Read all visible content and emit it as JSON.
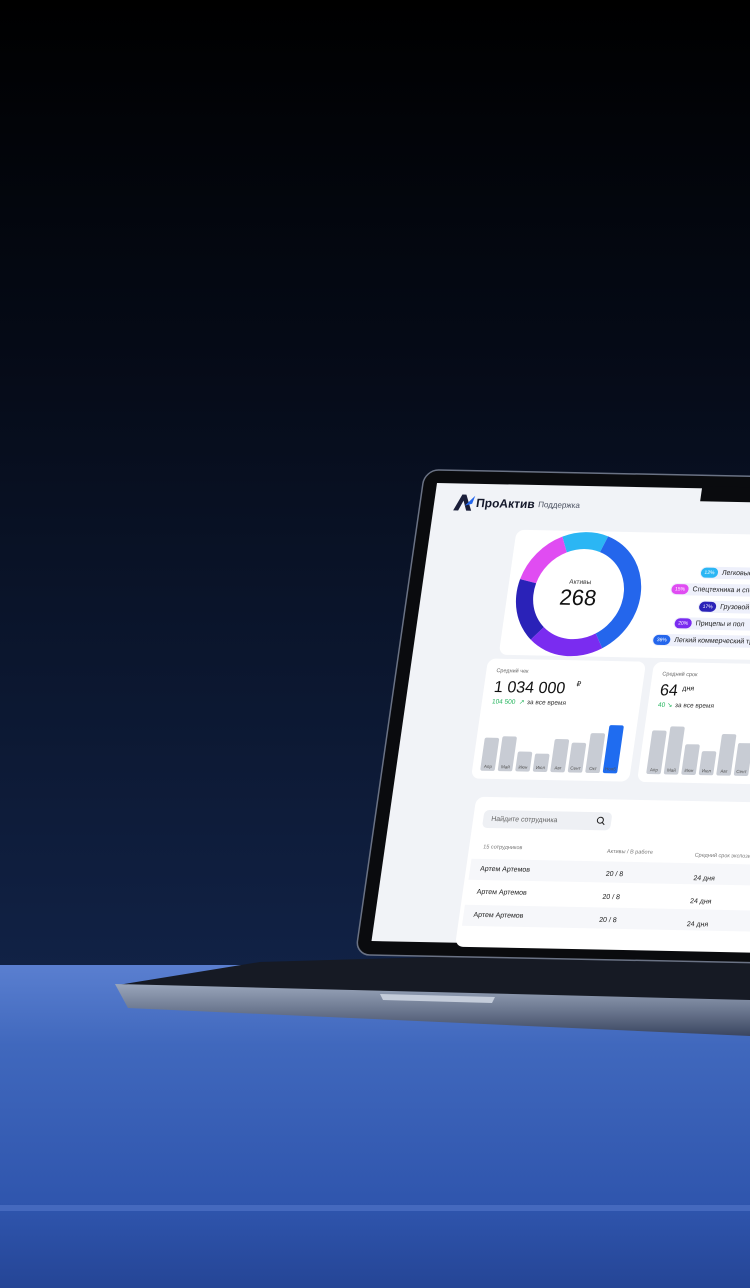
{
  "header": {
    "logo": "ПроАктив",
    "nav": "Поддержка"
  },
  "assets": {
    "label": "Активы",
    "total": 268,
    "names": [
      "Легковые",
      "Спецтехника и спе",
      "Грузовой",
      "Прицепы и пол",
      "Легкий коммерческий тр"
    ],
    "values": [
      12,
      15,
      17,
      20,
      36
    ],
    "value_labels": [
      "12%",
      "15%",
      "17%",
      "20%",
      "36%"
    ],
    "colors": [
      "#2bb6f4",
      "#e04cf2",
      "#2a22b8",
      "#7a2cf0",
      "#2466ec"
    ]
  },
  "avg_check": {
    "label": "Средний чек",
    "value": "1 034 000",
    "currency": "₽",
    "change": "104 500",
    "change_icon": "↗",
    "change_note": "за все время",
    "months": [
      "Апр",
      "Май",
      "Июн",
      "Июл",
      "Авг",
      "Сент",
      "Окт",
      "Нояб"
    ],
    "values": [
      40,
      42,
      24,
      22,
      40,
      36,
      48,
      58
    ],
    "colors": [
      "#c8ccd4",
      "#c8ccd4",
      "#c8ccd4",
      "#c8ccd4",
      "#c8ccd4",
      "#c8ccd4",
      "#c8ccd4",
      "#1f6cf0"
    ]
  },
  "avg_term": {
    "label": "Средний срок",
    "value": "64",
    "unit": "дня",
    "change": "40",
    "change_icon": "↘",
    "change_note": "за все время",
    "months": [
      "Апр",
      "Май",
      "Июн",
      "Июл",
      "Авг",
      "Сент"
    ],
    "values": [
      40,
      44,
      28,
      22,
      38,
      30
    ],
    "colors": [
      "#c8ccd4",
      "#c8ccd4",
      "#c8ccd4",
      "#c8ccd4",
      "#c8ccd4",
      "#c8ccd4"
    ]
  },
  "table": {
    "search_placeholder": "Найдите сотрудника",
    "headers": [
      "15 сотрудников",
      "Активы / В работе",
      "Средний срок экспозиции"
    ],
    "rows": [
      [
        "Артем Артемов",
        "20 / 8",
        "24 дня"
      ],
      [
        "Артем Артемов",
        "20 / 8",
        "24 дня"
      ],
      [
        "Артем Артемов",
        "20 / 8",
        "24 дня"
      ]
    ]
  }
}
